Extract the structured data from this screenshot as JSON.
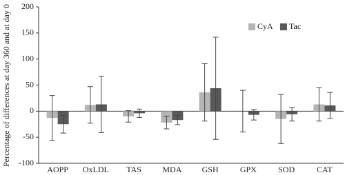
{
  "chart_data": {
    "type": "bar",
    "y_label": "Percentage of differences at day 360 and at day 0",
    "categories": [
      "AOPP",
      "OxLDL",
      "TAS",
      "MDA",
      "GSH",
      "GPX",
      "SOD",
      "CAT"
    ],
    "series": [
      {
        "name": "CyA",
        "color": "#b5b5b5",
        "values": [
          -13,
          12,
          -10,
          -22,
          36,
          0,
          -15,
          13
        ],
        "errors": [
          43,
          35,
          11,
          12,
          55,
          40,
          47,
          32
        ]
      },
      {
        "name": "Tac",
        "color": "#585858",
        "values": [
          -25,
          13,
          -4,
          -17,
          44,
          -7,
          -6,
          11
        ],
        "errors": [
          17,
          54,
          8,
          9,
          98,
          10,
          13,
          25
        ]
      }
    ],
    "ylim": [
      -100,
      200
    ],
    "yticks": [
      -100,
      -50,
      0,
      50,
      100,
      150,
      200
    ],
    "legend": "upper right",
    "grid": false
  }
}
